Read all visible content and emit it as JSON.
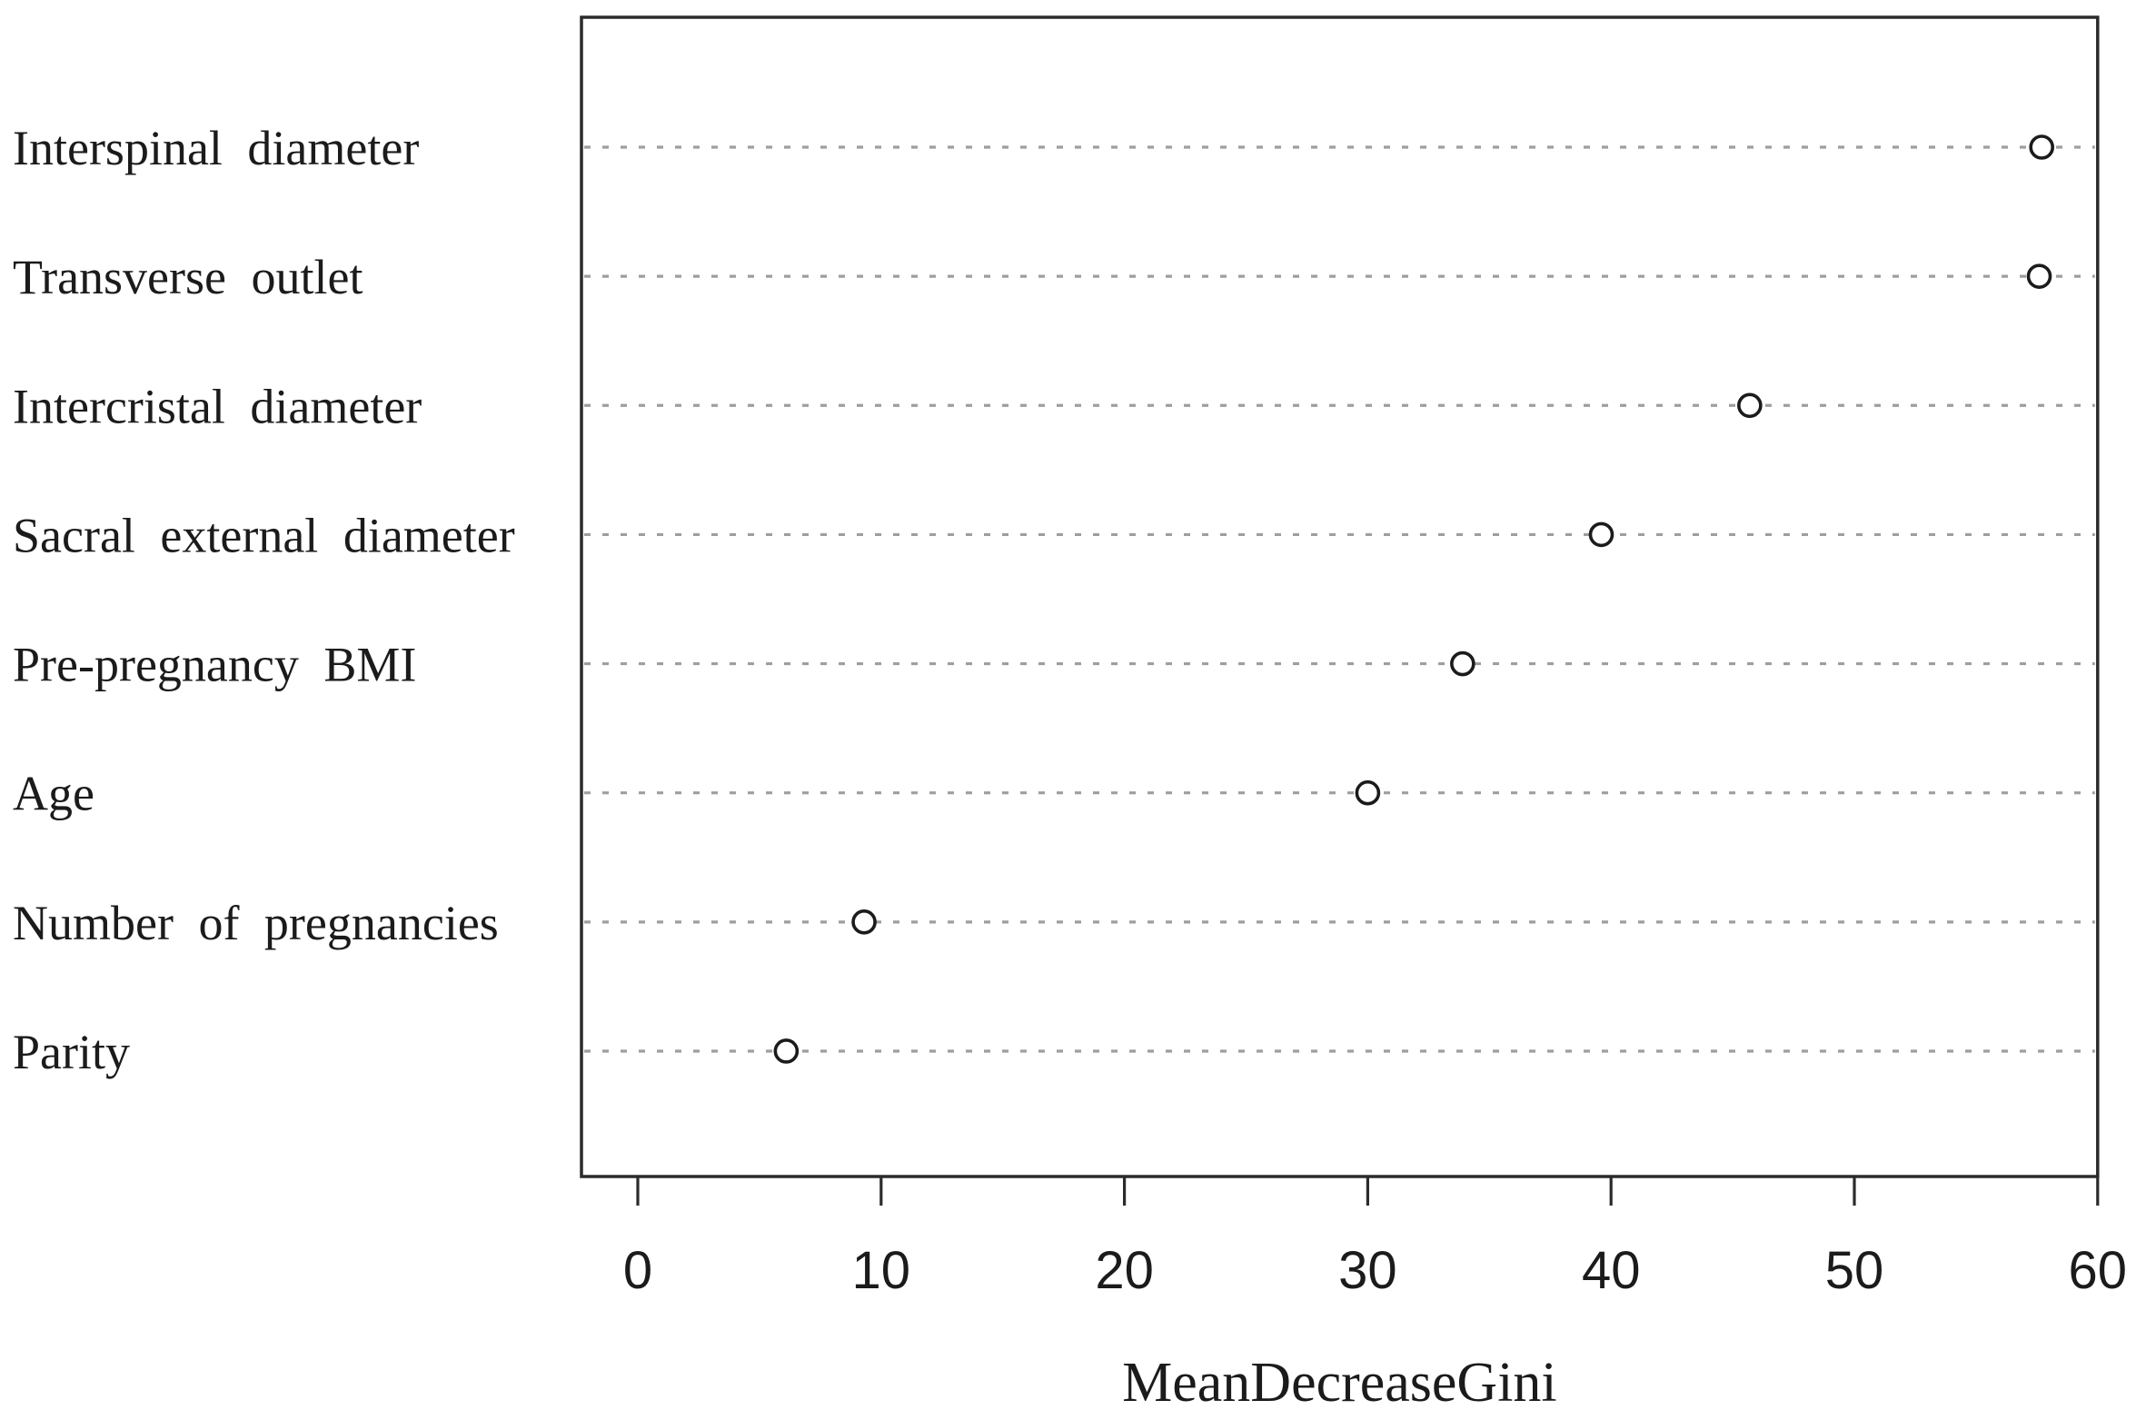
{
  "figure": {
    "background_color": "#ffffff",
    "text_color": "#1b1b1b",
    "axis_color": "#2b2b2b",
    "grid_color": "#9e9e9e",
    "marker_color": "#1b1b1b"
  },
  "chart_data": {
    "type": "scatter",
    "variant": "dot-chart-variable-importance",
    "title": "",
    "xlabel": "MeanDecreaseGini",
    "ylabel": "",
    "categories": [
      "Interspinal diameter",
      "Transverse outlet",
      "Intercristal diameter",
      "Sacral external diameter",
      "Pre-pregnancy BMI",
      "Age",
      "Number of pregnancies",
      "Parity"
    ],
    "values": [
      57.7,
      57.6,
      45.7,
      39.6,
      33.9,
      30.0,
      9.3,
      6.1
    ],
    "xticks": [
      0,
      10,
      20,
      30,
      40,
      50,
      60
    ],
    "xlim": [
      0,
      60
    ],
    "grid": "dotted-horizontal",
    "marker": "open-circle",
    "legend": "none"
  }
}
